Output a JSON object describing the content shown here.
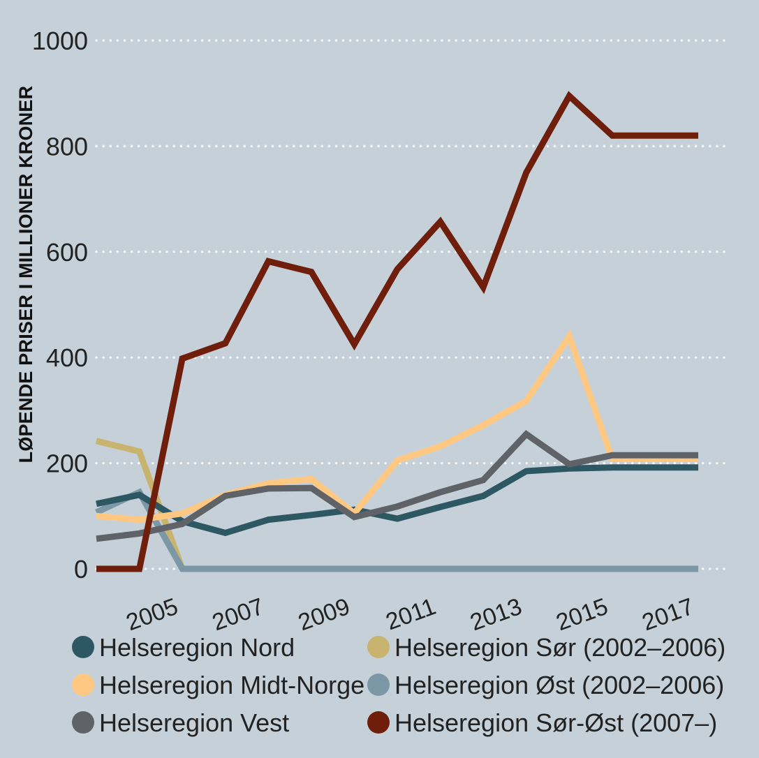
{
  "chart_data": {
    "type": "line",
    "title": "",
    "xlabel": "",
    "ylabel": "LØPENDE PRISER I MILLIONER KRONER",
    "x": [
      2003,
      2004,
      2005,
      2006,
      2007,
      2008,
      2009,
      2010,
      2011,
      2012,
      2013,
      2014,
      2015,
      2016,
      2017
    ],
    "xticks": [
      "2005",
      "2007",
      "2009",
      "2011",
      "2013",
      "2015",
      "2017"
    ],
    "yticks": [
      "0",
      "200",
      "400",
      "600",
      "800",
      "1000"
    ],
    "ylim": [
      0,
      1000
    ],
    "grid": true,
    "series": [
      {
        "name": "Helseregion Sør (2002–2006)",
        "color": "#c8b46e",
        "x": [
          2003,
          2004,
          2005
        ],
        "values": [
          242,
          222,
          0
        ]
      },
      {
        "name": "Helseregion Øst (2002–2006)",
        "color": "#7c98a6",
        "x": [
          2003,
          2004,
          2005,
          2006,
          2007,
          2008,
          2009,
          2010,
          2011,
          2012,
          2013,
          2014,
          2015,
          2016,
          2017
        ],
        "values": [
          107,
          145,
          0,
          0,
          0,
          0,
          0,
          0,
          0,
          0,
          0,
          0,
          0,
          0,
          0
        ]
      },
      {
        "name": "Helseregion Nord",
        "color": "#2d5863",
        "x": [
          2003,
          2004,
          2005,
          2006,
          2007,
          2008,
          2009,
          2010,
          2011,
          2012,
          2013,
          2014,
          2015,
          2016,
          2017
        ],
        "values": [
          123,
          140,
          90,
          68,
          93,
          102,
          112,
          95,
          117,
          138,
          185,
          190,
          192,
          192,
          192
        ]
      },
      {
        "name": "Helseregion Midt-Norge",
        "color": "#fec882",
        "x": [
          2003,
          2004,
          2005,
          2006,
          2007,
          2008,
          2009,
          2010,
          2011,
          2012,
          2013,
          2014,
          2015,
          2016,
          2017
        ],
        "values": [
          100,
          93,
          105,
          140,
          162,
          170,
          105,
          205,
          232,
          272,
          318,
          440,
          208,
          208,
          208
        ]
      },
      {
        "name": "Helseregion Vest",
        "color": "#5f6266",
        "x": [
          2003,
          2004,
          2005,
          2006,
          2007,
          2008,
          2009,
          2010,
          2011,
          2012,
          2013,
          2014,
          2015,
          2016,
          2017
        ],
        "values": [
          57,
          67,
          85,
          138,
          152,
          153,
          98,
          118,
          145,
          168,
          255,
          198,
          215,
          215,
          215
        ]
      },
      {
        "name": "Helseregion Sør-Øst (2007–)",
        "color": "#6e1e0a",
        "x": [
          2003,
          2004,
          2005,
          2006,
          2007,
          2008,
          2009,
          2010,
          2011,
          2012,
          2013,
          2014,
          2015,
          2016,
          2017
        ],
        "values": [
          0,
          0,
          398,
          427,
          582,
          562,
          425,
          567,
          657,
          533,
          750,
          895,
          820,
          820,
          820
        ]
      }
    ],
    "legend": [
      {
        "label": "Helseregion Nord",
        "color": "#2d5863"
      },
      {
        "label": "Helseregion Sør (2002–2006)",
        "color": "#c8b46e"
      },
      {
        "label": "Helseregion Midt-Norge",
        "color": "#fec882"
      },
      {
        "label": "Helseregion Øst (2002–2006)",
        "color": "#7c98a6"
      },
      {
        "label": "Helseregion Vest",
        "color": "#5f6266"
      },
      {
        "label": "Helseregion Sør-Øst (2007–)",
        "color": "#6e1e0a"
      }
    ]
  }
}
